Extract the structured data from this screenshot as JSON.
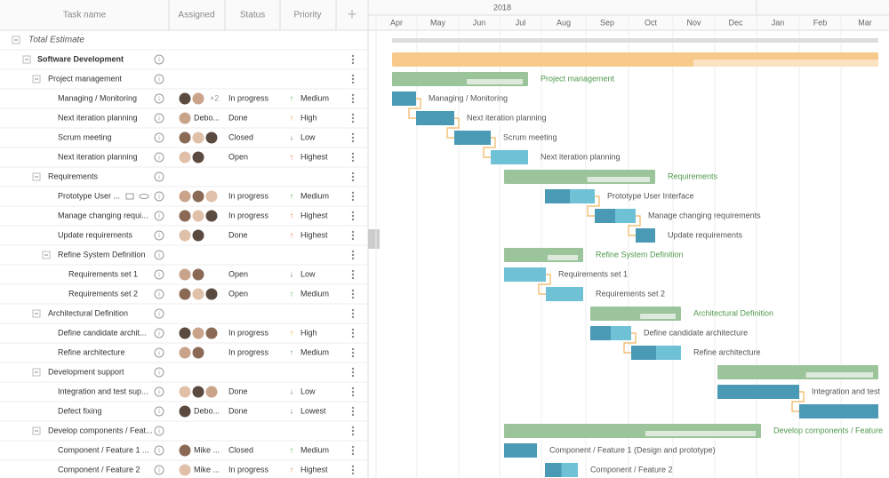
{
  "header": {
    "columns": [
      "Task name",
      "Assigned",
      "Status",
      "Priority"
    ],
    "add": "+"
  },
  "timeline": {
    "year": "2018",
    "months": [
      "Apr",
      "May",
      "Jun",
      "Jul",
      "Aug",
      "Sep",
      "Oct",
      "Nov",
      "Dec",
      "Jan",
      "Feb",
      "Mar"
    ]
  },
  "rows": [
    {
      "name": "Total Estimate"
    },
    {
      "name": "Software Development"
    },
    {
      "name": "Project management",
      "bar_label": "Project management"
    },
    {
      "name": "Managing / Monitoring",
      "extra": "+2",
      "status": "In progress",
      "arrow": "↑",
      "priority": "Medium",
      "bar_label": "Managing / Monitoring"
    },
    {
      "name": "Next iteration planning",
      "assignee": "Debo...",
      "status": "Done",
      "arrow": "↑",
      "priority": "High",
      "bar_label": "Next iteration planning"
    },
    {
      "name": "Scrum meeting",
      "status": "Closed",
      "arrow": "↓",
      "priority": "Low",
      "bar_label": "Scrum meeting"
    },
    {
      "name": "Next iteration planning",
      "status": "Open",
      "arrow": "↑",
      "priority": "Highest",
      "bar_label": "Next iteration planning"
    },
    {
      "name": "Requirements",
      "bar_label": "Requirements"
    },
    {
      "name": "Prototype User ...",
      "status": "In progress",
      "arrow": "↑",
      "priority": "Medium",
      "bar_label": "Prototype User Interface"
    },
    {
      "name": "Manage changing requi...",
      "status": "In progress",
      "arrow": "↑",
      "priority": "Highest",
      "bar_label": "Manage changing requirements"
    },
    {
      "name": "Update requirements",
      "status": "Done",
      "arrow": "↑",
      "priority": "Highest",
      "bar_label": "Update requirements"
    },
    {
      "name": "Refine System Definition",
      "bar_label": "Refine System Definition"
    },
    {
      "name": "Requirements set 1",
      "status": "Open",
      "arrow": "↓",
      "priority": "Low",
      "bar_label": "Requirements set 1"
    },
    {
      "name": "Requirements set 2",
      "status": "Open",
      "arrow": "↑",
      "priority": "Medium",
      "bar_label": "Requirements set 2"
    },
    {
      "name": "Architectural Definition",
      "bar_label": "Architectural Definition"
    },
    {
      "name": "Define candidate archit...",
      "status": "In progress",
      "arrow": "↑",
      "priority": "High",
      "bar_label": "Define candidate architecture"
    },
    {
      "name": "Refine architecture",
      "status": "In progress",
      "arrow": "↑",
      "priority": "Medium",
      "bar_label": "Refine architecture"
    },
    {
      "name": "Development support"
    },
    {
      "name": "Integration and test sup...",
      "status": "Done",
      "arrow": "↓",
      "priority": "Low",
      "bar_label": "Integration and test"
    },
    {
      "name": "Defect fixing",
      "assignee": "Debo...",
      "status": "Done",
      "arrow": "↓",
      "priority": "Lowest"
    },
    {
      "name": "Develop components / Feat...",
      "bar_label": "Develop components / Feature"
    },
    {
      "name": "Component / Feature 1 ...",
      "assignee": "Mike ...",
      "status": "Closed",
      "arrow": "↑",
      "priority": "Medium",
      "bar_label": "Component / Feature 1 (Design and prototype)"
    },
    {
      "name": "Component / Feature 2",
      "assignee": "Mike ...",
      "status": "In progress",
      "arrow": "↑",
      "priority": "Highest",
      "bar_label": "Component / Feature 2"
    }
  ]
}
